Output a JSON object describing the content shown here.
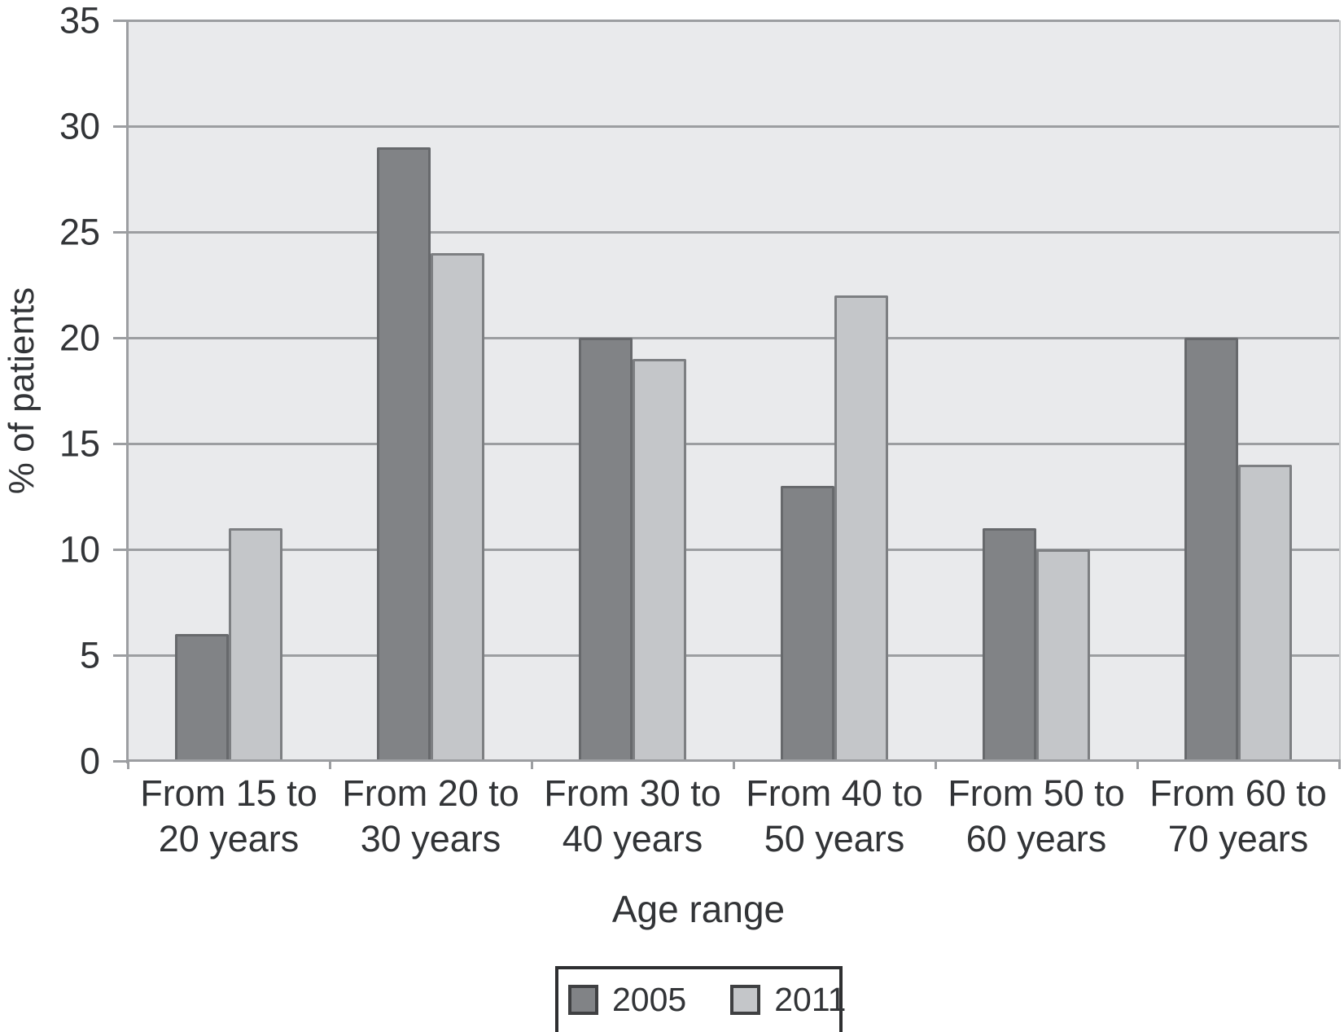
{
  "chart_data": {
    "type": "bar",
    "title": "",
    "xlabel": "Age range",
    "ylabel": "% of patients",
    "categories": [
      "From 15 to 20 years",
      "From 20 to 30 years",
      "From 30 to 40 years",
      "From 40 to 50 years",
      "From 50 to 60 years",
      "From 60 to 70 years"
    ],
    "categories_lines": [
      [
        "From 15 to",
        "20 years"
      ],
      [
        "From 20 to",
        "30 years"
      ],
      [
        "From 30 to",
        "40 years"
      ],
      [
        "From 40 to",
        "50 years"
      ],
      [
        "From 50 to",
        "60 years"
      ],
      [
        "From 60 to",
        "70 years"
      ]
    ],
    "series": [
      {
        "name": "2005",
        "values": [
          6,
          29,
          20,
          13,
          11,
          20
        ],
        "fill": "#818386",
        "border": "#67696c"
      },
      {
        "name": "2011",
        "values": [
          11,
          24,
          19,
          22,
          10,
          14
        ],
        "fill": "#c4c6c9",
        "border": "#7d7f82"
      }
    ],
    "ylim": [
      0,
      35
    ],
    "yticks": [
      0,
      5,
      10,
      15,
      20,
      25,
      30,
      35
    ],
    "grid": "horizontal",
    "legend_position": "bottom"
  },
  "colors": {
    "plot_background": "#e9eaec",
    "gridline": "#9c9ea1",
    "axis": "#9c9ea1",
    "text": "#323437",
    "series_2005_fill": "#818386",
    "series_2011_fill": "#c4c6c9",
    "legend_border": "#2e2f31",
    "page_background": "#ffffff"
  }
}
